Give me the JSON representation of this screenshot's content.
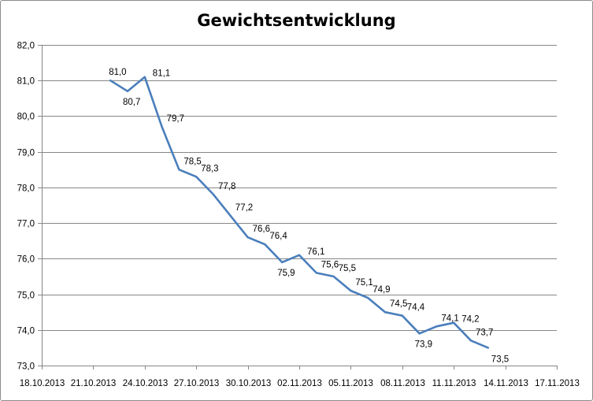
{
  "chart_data": {
    "type": "line",
    "title": "Gewichtsentwicklung",
    "xlabel": "",
    "ylabel": "",
    "ylim": [
      73.0,
      82.0
    ],
    "y_ticks": [
      "73,0",
      "74,0",
      "75,0",
      "76,0",
      "77,0",
      "78,0",
      "79,0",
      "80,0",
      "81,0",
      "82,0"
    ],
    "xlim": [
      "2013-10-18",
      "2013-11-17"
    ],
    "x_ticks": [
      "18.10.2013",
      "21.10.2013",
      "24.10.2013",
      "27.10.2013",
      "30.10.2013",
      "02.11.2013",
      "05.11.2013",
      "08.11.2013",
      "11.11.2013",
      "14.11.2013",
      "17.11.2013"
    ],
    "grid": "horizontal",
    "legend": "none",
    "line_color": "#4a7ebb",
    "series": [
      {
        "x": [
          "2013-10-22",
          "2013-10-23",
          "2013-10-24",
          "2013-10-25",
          "2013-10-26",
          "2013-10-27",
          "2013-10-28",
          "2013-10-29",
          "2013-10-30",
          "2013-10-31",
          "2013-11-01",
          "2013-11-02",
          "2013-11-03",
          "2013-11-04",
          "2013-11-05",
          "2013-11-06",
          "2013-11-07",
          "2013-11-08",
          "2013-11-09",
          "2013-11-10",
          "2013-11-11",
          "2013-11-12",
          "2013-11-13"
        ],
        "values": [
          81.0,
          80.7,
          81.1,
          79.7,
          78.5,
          78.3,
          77.8,
          77.2,
          76.6,
          76.4,
          75.9,
          76.1,
          75.6,
          75.5,
          75.1,
          74.9,
          74.5,
          74.4,
          73.9,
          74.1,
          74.2,
          73.7,
          73.5
        ],
        "labels": [
          "81,0",
          "80,7",
          "81,1",
          "79,7",
          "78,5",
          "78,3",
          "77,8",
          "77,2",
          "76,6",
          "76,4",
          "75,9",
          "76,1",
          "75,6",
          "75,5",
          "75,1",
          "74,9",
          "74,5",
          "74,4",
          "73,9",
          "74,1",
          "74,2",
          "73,7",
          "73,5"
        ]
      }
    ]
  }
}
